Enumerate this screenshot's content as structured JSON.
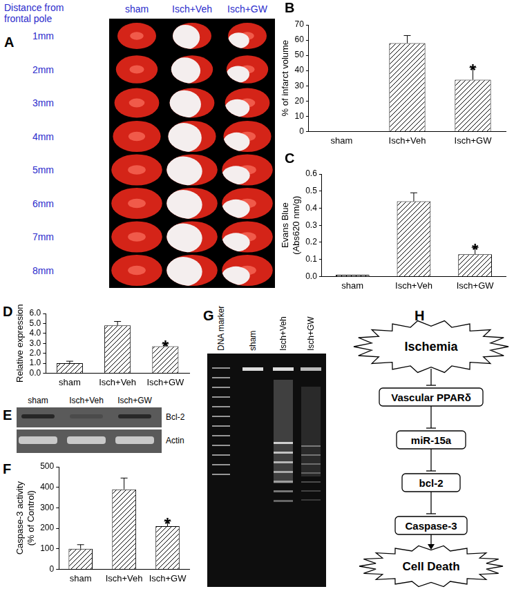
{
  "panel_A": {
    "letter": "A",
    "title": [
      "Distance from",
      "frontal pole"
    ],
    "columns": [
      "sham",
      "Isch+Veh",
      "Isch+GW"
    ],
    "rows": [
      "1mm",
      "2mm",
      "3mm",
      "4mm",
      "5mm",
      "6mm",
      "7mm",
      "8mm"
    ]
  },
  "chart_data": [
    {
      "letter": "B",
      "type": "bar",
      "categories": [
        "sham",
        "Isch+Veh",
        "Isch+GW"
      ],
      "values": [
        0,
        58,
        34
      ],
      "errors": [
        null,
        5,
        8
      ],
      "significance": [
        null,
        null,
        "*"
      ],
      "y_label": [
        "% of infarct volume"
      ],
      "ylim": [
        0,
        70
      ],
      "yticks": [
        0,
        10,
        20,
        30,
        40,
        50,
        60,
        70
      ],
      "grid": false,
      "color": "#000000"
    },
    {
      "letter": "C",
      "type": "bar",
      "categories": [
        "sham",
        "Isch+Veh",
        "Isch+GW"
      ],
      "values": [
        0.01,
        0.44,
        0.13
      ],
      "errors": [
        null,
        0.05,
        0.04
      ],
      "significance": [
        null,
        null,
        "*"
      ],
      "y_label": [
        "Evans Blue",
        "(Abs620 nm/g)"
      ],
      "ylim": [
        0,
        0.6
      ],
      "yticks": [
        {
          "value": 0,
          "label": "0.0"
        },
        0.1,
        0.2,
        0.3,
        0.4,
        0.5,
        0.6
      ],
      "grid": false,
      "color": "#000000"
    },
    {
      "letter": "D",
      "type": "bar",
      "categories": [
        "sham",
        "Isch+Veh",
        "Isch+GW"
      ],
      "values": [
        1.0,
        4.8,
        2.7
      ],
      "errors": [
        0.2,
        0.4,
        0.25
      ],
      "significance": [
        null,
        null,
        "*"
      ],
      "y_label": [
        "Relative expression"
      ],
      "ylim": [
        0,
        6
      ],
      "yticks": [
        {
          "value": 0,
          "label": "0.0"
        },
        {
          "value": 1,
          "label": "1.0"
        },
        {
          "value": 2,
          "label": "2.0"
        },
        {
          "value": 3,
          "label": "3.0"
        },
        {
          "value": 4,
          "label": "4.0"
        },
        {
          "value": 5,
          "label": "5.0"
        },
        {
          "value": 6,
          "label": "6.0"
        }
      ],
      "grid": false,
      "color": "#000000"
    },
    {
      "letter": "F",
      "type": "bar",
      "categories": [
        "sham",
        "Isch+Veh",
        "Isch+GW"
      ],
      "values": [
        100,
        390,
        210
      ],
      "errors": [
        20,
        55,
        25
      ],
      "significance": [
        null,
        null,
        "*"
      ],
      "y_label": [
        "Caspase-3 activity",
        "(% of Control)"
      ],
      "ylim": [
        0,
        500
      ],
      "yticks": [
        0,
        100,
        200,
        300,
        400,
        500
      ],
      "grid": false,
      "color": "#000000"
    }
  ],
  "panel_E": {
    "letter": "E",
    "columns": [
      "sham",
      "Isch+Veh",
      "Isch+GW"
    ],
    "rows": [
      "Bcl-2",
      "Actin"
    ]
  },
  "panel_G": {
    "letter": "G",
    "lanes": [
      "DNA marker",
      "sham",
      "Isch+Veh",
      "Isch+GW"
    ]
  },
  "panel_H": {
    "letter": "H",
    "nodes": [
      "Ischemia",
      "Vascular PPARδ",
      "miR-15a",
      "bcl-2",
      "Caspase-3",
      "Cell Death"
    ]
  }
}
